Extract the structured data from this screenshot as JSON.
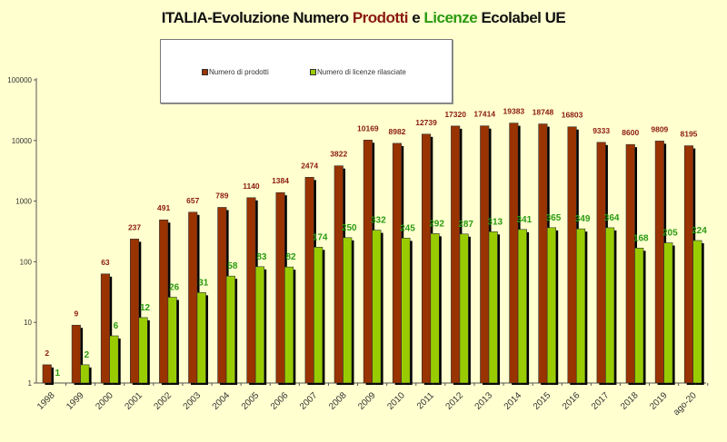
{
  "chart_data": {
    "type": "bar",
    "title": {
      "part1": "ITALIA-Evoluzione Numero ",
      "part2": "Prodotti",
      "part3": " e  ",
      "part4": "Licenze",
      "part5": " Ecolabel UE"
    },
    "categories": [
      "1998",
      "1999",
      "2000",
      "2001",
      "2002",
      "2003",
      "2004",
      "2005",
      "2006",
      "2007",
      "2008",
      "2009",
      "2010",
      "2011",
      "2012",
      "2013",
      "2014",
      "2015",
      "2016",
      "2017",
      "2018",
      "2019",
      "ago-20"
    ],
    "series": [
      {
        "name": "Numero di prodotti",
        "color": "#993300",
        "label_color": "#8b1a10",
        "values": [
          2,
          9,
          63,
          237,
          491,
          657,
          789,
          1140,
          1384,
          2474,
          3822,
          10169,
          8982,
          12739,
          17320,
          17414,
          19383,
          18748,
          16803,
          9333,
          8600,
          9809,
          8195
        ]
      },
      {
        "name": "Numero di licenze rilasciate",
        "color": "#99cc00",
        "label_color": "#2a9a10",
        "values": [
          1,
          2,
          6,
          12,
          26,
          31,
          58,
          83,
          82,
          174,
          250,
          332,
          245,
          292,
          287,
          313,
          341,
          365,
          349,
          364,
          168,
          205,
          224
        ]
      }
    ],
    "y_scale": "log",
    "ylim": [
      1,
      100000
    ],
    "y_ticks": [
      "1",
      "10",
      "100",
      "1000",
      "10000",
      "100000"
    ],
    "legend_position": "top",
    "grid": false
  }
}
